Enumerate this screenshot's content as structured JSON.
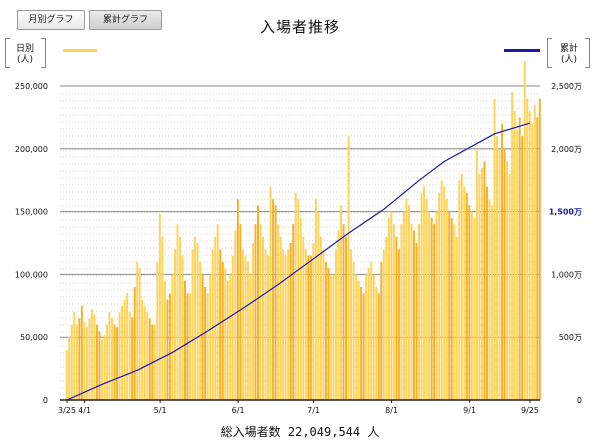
{
  "tabs": [
    {
      "label": "月別グラフ",
      "active": false
    },
    {
      "label": "累計グラフ",
      "active": true
    }
  ],
  "chart_data": {
    "type": "bar",
    "title": "入場者推移",
    "left_axis": {
      "label_line1": "日別",
      "label_line2": "(人)",
      "ticks": [
        0,
        50000,
        100000,
        150000,
        200000,
        250000
      ],
      "tick_labels": [
        "0",
        "50,000",
        "100,000",
        "150,000",
        "200,000",
        "250,000"
      ],
      "ylim": [
        0,
        250000
      ]
    },
    "right_axis": {
      "label_line1": "累計",
      "label_line2": "(人)",
      "ticks": [
        0,
        5000000,
        10000000,
        15000000,
        20000000,
        25000000
      ],
      "tick_labels": [
        "0",
        "500万",
        "1,000万",
        "1,500万",
        "2,000万",
        "2,500万"
      ],
      "ylim": [
        0,
        25000000
      ],
      "highlight_tick_index": 3
    },
    "x_tick_labels": [
      "3/25",
      "4/1",
      "5/1",
      "6/1",
      "7/1",
      "8/1",
      "9/1",
      "9/25"
    ],
    "x_tick_days": [
      0,
      7,
      37,
      68,
      98,
      129,
      160,
      184
    ],
    "grid": true,
    "colors": {
      "daily": "#ffd35a",
      "daily_weekend": "#f5b028",
      "cumulative": "#1a1aa8",
      "highlight_tick": "#1a1aa8"
    },
    "series": [
      {
        "type": "bar",
        "values": [
          40000,
          50000,
          60000,
          70000,
          60000,
          65000,
          75000,
          62000,
          58000,
          65000,
          72000,
          68000,
          60000,
          55000,
          48000,
          52000,
          60000,
          70000,
          65000,
          60000,
          58000,
          70000,
          75000,
          80000,
          85000,
          70000,
          66000,
          90000,
          110000,
          105000,
          80000,
          75000,
          70000,
          65000,
          60000,
          60000,
          110000,
          148000,
          130000,
          95000,
          80000,
          85000,
          100000,
          120000,
          140000,
          130000,
          115000,
          95000,
          85000,
          85000,
          120000,
          130000,
          125000,
          110000,
          100000,
          90000,
          85000,
          100000,
          120000,
          130000,
          140000,
          120000,
          110000,
          105000,
          95000,
          100000,
          115000,
          135000,
          160000,
          140000,
          120000,
          115000,
          110000,
          100000,
          125000,
          140000,
          155000,
          140000,
          130000,
          120000,
          115000,
          170000,
          160000,
          155000,
          140000,
          130000,
          120000,
          115000,
          120000,
          125000,
          140000,
          165000,
          160000,
          145000,
          130000,
          120000,
          115000,
          115000,
          125000,
          160000,
          150000,
          130000,
          120000,
          110000,
          105000,
          100000,
          100000,
          120000,
          135000,
          155000,
          140000,
          130000,
          210000,
          120000,
          110000,
          100000,
          95000,
          90000,
          85000,
          100000,
          105000,
          110000,
          100000,
          90000,
          85000,
          110000,
          120000,
          130000,
          145000,
          150000,
          140000,
          130000,
          120000,
          140000,
          150000,
          160000,
          155000,
          140000,
          135000,
          125000,
          140000,
          165000,
          170000,
          160000,
          150000,
          145000,
          140000,
          150000,
          165000,
          175000,
          170000,
          160000,
          150000,
          145000,
          140000,
          130000,
          175000,
          180000,
          170000,
          165000,
          155000,
          150000,
          145000,
          200000,
          180000,
          185000,
          190000,
          170000,
          160000,
          155000,
          240000,
          210000,
          200000,
          220000,
          200000,
          190000,
          180000,
          245000,
          230000,
          215000,
          225000,
          210000,
          270000,
          240000,
          230000,
          220000,
          235000,
          225000,
          240000
        ]
      },
      {
        "type": "line",
        "name": "累計",
        "values": [
          0,
          1250000,
          2370000,
          3800000,
          5500000,
          7300000,
          9200000,
          11250000,
          13300000,
          15200000,
          17500000,
          19000000,
          21200000,
          22049544
        ],
        "days": [
          0,
          14,
          28,
          42,
          56,
          70,
          84,
          98,
          112,
          126,
          140,
          150,
          170,
          184
        ]
      }
    ]
  },
  "total": {
    "label": "総入場者数",
    "value": "22,049,544",
    "unit": "人"
  }
}
